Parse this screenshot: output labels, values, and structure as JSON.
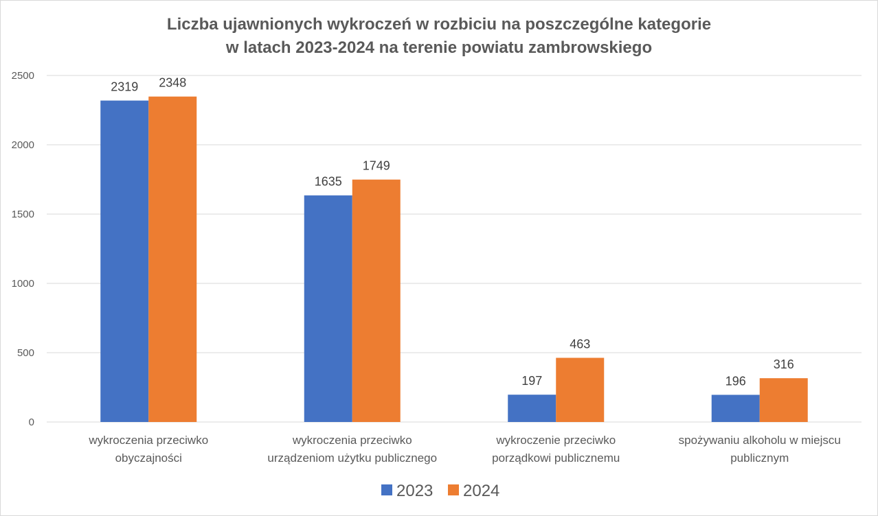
{
  "chart_data": {
    "type": "bar",
    "title_lines": [
      "Liczba ujawnionych wykroczeń w rozbiciu na poszczególne kategorie",
      "w latach 2023-2024 na terenie powiatu zambrowskiego"
    ],
    "categories": [
      [
        "wykroczenia przeciwko",
        "obyczajności"
      ],
      [
        "wykroczenia przeciwko",
        "urządzeniom użytku publicznego"
      ],
      [
        "wykroczenie przeciwko",
        "porządkowi publicznemu"
      ],
      [
        "spożywaniu alkoholu w miejscu",
        "publicznym"
      ]
    ],
    "series": [
      {
        "name": "2023",
        "color": "#4472C4",
        "values": [
          2319,
          1635,
          197,
          196
        ]
      },
      {
        "name": "2024",
        "color": "#ED7D31",
        "values": [
          2348,
          1749,
          463,
          316
        ]
      }
    ],
    "yticks": [
      0,
      500,
      1000,
      1500,
      2000,
      2500
    ],
    "ylim": [
      0,
      2500
    ],
    "grid": true,
    "legend_position": "bottom"
  }
}
